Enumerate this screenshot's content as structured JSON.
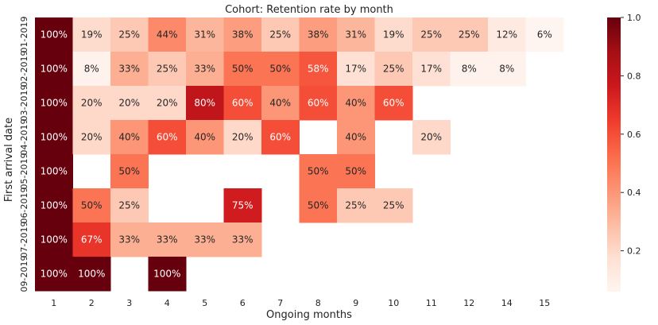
{
  "chart_data": {
    "type": "heatmap",
    "title": "Cohort: Retention rate by month",
    "xlabel": "Ongoing months",
    "ylabel": "First arrival date",
    "columns": [
      "1",
      "2",
      "3",
      "4",
      "5",
      "6",
      "7",
      "8",
      "9",
      "10",
      "11",
      "12",
      "14",
      "15"
    ],
    "rows": [
      "01-2019",
      "02-2019",
      "03-2019",
      "04-2019",
      "05-2019",
      "06-2019",
      "07-2019",
      "09-2019"
    ],
    "values": [
      [
        1.0,
        0.19,
        0.25,
        0.44,
        0.31,
        0.38,
        0.25,
        0.38,
        0.31,
        0.19,
        0.25,
        0.25,
        0.12,
        0.06
      ],
      [
        1.0,
        0.08,
        0.33,
        0.25,
        0.33,
        0.5,
        0.5,
        0.58,
        0.17,
        0.25,
        0.17,
        0.08,
        0.08,
        null
      ],
      [
        1.0,
        0.2,
        0.2,
        0.2,
        0.8,
        0.6,
        0.4,
        0.6,
        0.4,
        0.6,
        null,
        null,
        null,
        null
      ],
      [
        1.0,
        0.2,
        0.4,
        0.6,
        0.4,
        0.2,
        0.6,
        null,
        0.4,
        null,
        0.2,
        null,
        null,
        null
      ],
      [
        1.0,
        null,
        0.5,
        null,
        null,
        null,
        null,
        0.5,
        0.5,
        null,
        null,
        null,
        null,
        null
      ],
      [
        1.0,
        0.5,
        0.25,
        null,
        null,
        0.75,
        null,
        0.5,
        0.25,
        0.25,
        null,
        null,
        null,
        null
      ],
      [
        1.0,
        0.67,
        0.33,
        0.33,
        0.33,
        0.33,
        null,
        null,
        null,
        null,
        null,
        null,
        null,
        null
      ],
      [
        1.0,
        1.0,
        null,
        1.0,
        null,
        null,
        null,
        null,
        null,
        null,
        null,
        null,
        null,
        null
      ]
    ],
    "labels": [
      [
        "100%",
        "19%",
        "25%",
        "44%",
        "31%",
        "38%",
        "25%",
        "38%",
        "31%",
        "19%",
        "25%",
        "25%",
        "12%",
        "6%"
      ],
      [
        "100%",
        "8%",
        "33%",
        "25%",
        "33%",
        "50%",
        "50%",
        "58%",
        "17%",
        "25%",
        "17%",
        "8%",
        "8%",
        ""
      ],
      [
        "100%",
        "20%",
        "20%",
        "20%",
        "80%",
        "60%",
        "40%",
        "60%",
        "40%",
        "60%",
        "",
        "",
        "",
        ""
      ],
      [
        "100%",
        "20%",
        "40%",
        "60%",
        "40%",
        "20%",
        "60%",
        "",
        "40%",
        "",
        "20%",
        "",
        "",
        ""
      ],
      [
        "100%",
        "",
        "50%",
        "",
        "",
        "",
        "",
        "50%",
        "50%",
        "",
        "",
        "",
        "",
        ""
      ],
      [
        "100%",
        "50%",
        "25%",
        "",
        "",
        "75%",
        "",
        "50%",
        "25%",
        "25%",
        "",
        "",
        "",
        ""
      ],
      [
        "100%",
        "67%",
        "33%",
        "33%",
        "33%",
        "33%",
        "",
        "",
        "",
        "",
        "",
        "",
        "",
        ""
      ],
      [
        "100%",
        "100%",
        "",
        "100%",
        "",
        "",
        "",
        "",
        "",
        "",
        "",
        "",
        "",
        ""
      ]
    ],
    "colorbar": {
      "vmin": 0.06,
      "vmax": 1.0,
      "ticks": [
        0.2,
        0.4,
        0.6,
        0.8,
        1.0
      ],
      "tick_labels": [
        "0.2",
        "0.4",
        "0.6",
        "0.8",
        "1.0"
      ],
      "colormap": "Reds"
    },
    "colors": {
      "text_light": "#ffffff",
      "text_dark": "#262626",
      "axis_text": "#222222"
    }
  }
}
